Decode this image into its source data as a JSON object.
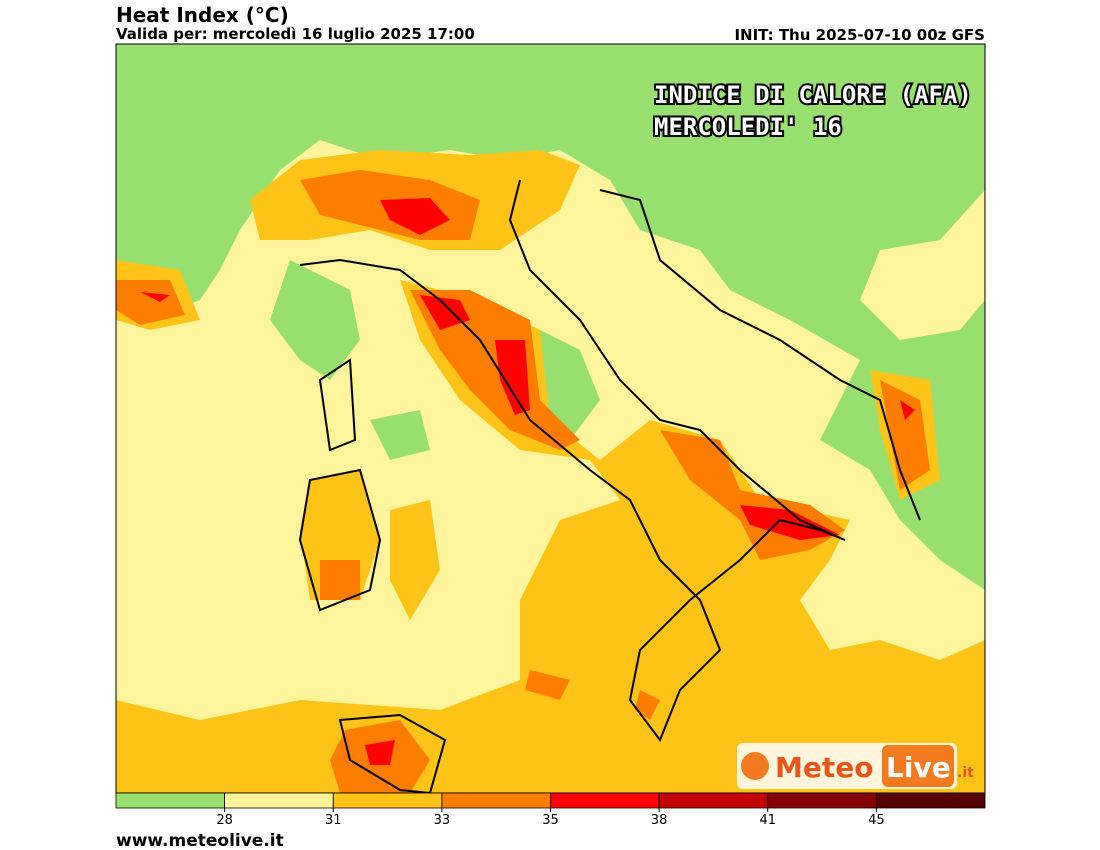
{
  "header": {
    "title": "Heat Index (°C)",
    "subtitle": "Valida per: mercoledì 16 luglio 2025 17:00",
    "init": "INIT: Thu 2025-07-10 00z GFS"
  },
  "map": {
    "overlay": [
      "INDICE DI CALORE (AFA)",
      "MERCOLEDI' 16"
    ],
    "logo": {
      "part1": "Meteo",
      "part2": "Live",
      "suffix": ".it"
    }
  },
  "colorbar": {
    "colors": [
      "#97df6f",
      "#fdf49c",
      "#fdc417",
      "#fd7d00",
      "#fd0000",
      "#c40000",
      "#870000",
      "#570000"
    ],
    "ticks": [
      28,
      31,
      33,
      35,
      38,
      41,
      45
    ]
  },
  "footer": {
    "url": "www.meteolive.it"
  }
}
